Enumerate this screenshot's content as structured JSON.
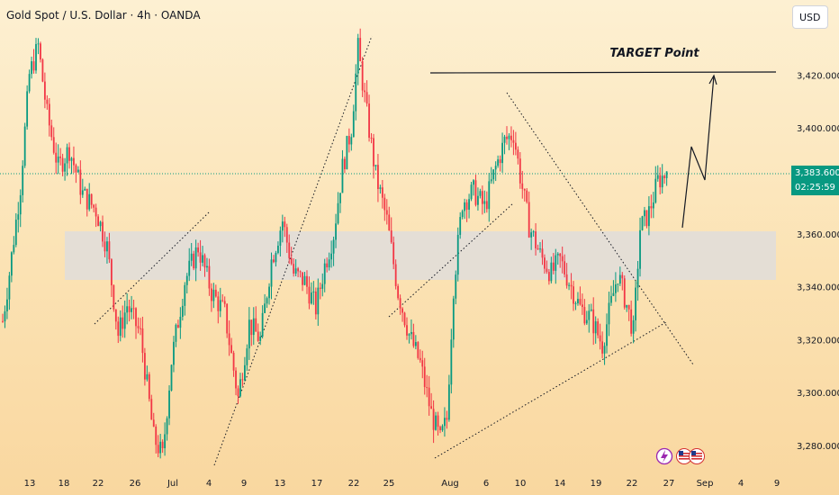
{
  "header": {
    "title": "Gold Spot / U.S. Dollar · 4h · OANDA",
    "currency": "USD"
  },
  "price_tag": {
    "price": "3,383.600",
    "countdown": "02:25:59"
  },
  "annotations": {
    "target_label": "TARGET Point"
  },
  "colors": {
    "up": "#089981",
    "down": "#f23645",
    "current_price_line": "#089981",
    "zone": "#dcdce0",
    "pattern_lines": "#131722"
  },
  "icons": [
    "lightning-icon",
    "us-flag-icon",
    "us-flag-icon"
  ],
  "chart_data": {
    "type": "candlestick",
    "title": "Gold Spot / U.S. Dollar · 4h · OANDA",
    "x_tick_labels": [
      "13",
      "18",
      "22",
      "26",
      "Jul",
      "4",
      "9",
      "13",
      "17",
      "22",
      "25",
      "Aug",
      "6",
      "10",
      "14",
      "19",
      "22",
      "27",
      "Sep",
      "4",
      "9"
    ],
    "y_tick_labels": [
      "3,280.000",
      "3,300.000",
      "3,320.000",
      "3,340.000",
      "3,360.000",
      "3,380.000",
      "3,400.000",
      "3,420.000"
    ],
    "y_range": [
      3271,
      3442
    ],
    "current_price": 3383.6,
    "support_zone": [
      3344,
      3362
    ],
    "target_level": 3422,
    "close_path": [
      {
        "t": 0,
        "p": 3327
      },
      {
        "t": 3,
        "p": 3345
      },
      {
        "t": 8,
        "p": 3378
      },
      {
        "t": 12,
        "p": 3420
      },
      {
        "t": 16,
        "p": 3431
      },
      {
        "t": 20,
        "p": 3405
      },
      {
        "t": 25,
        "p": 3385
      },
      {
        "t": 30,
        "p": 3392
      },
      {
        "t": 36,
        "p": 3375
      },
      {
        "t": 42,
        "p": 3369
      },
      {
        "t": 47,
        "p": 3355
      },
      {
        "t": 52,
        "p": 3322
      },
      {
        "t": 56,
        "p": 3333
      },
      {
        "t": 62,
        "p": 3322
      },
      {
        "t": 68,
        "p": 3283
      },
      {
        "t": 72,
        "p": 3276
      },
      {
        "t": 76,
        "p": 3312
      },
      {
        "t": 82,
        "p": 3342
      },
      {
        "t": 88,
        "p": 3355
      },
      {
        "t": 94,
        "p": 3338
      },
      {
        "t": 100,
        "p": 3330
      },
      {
        "t": 106,
        "p": 3298
      },
      {
        "t": 111,
        "p": 3326
      },
      {
        "t": 116,
        "p": 3320
      },
      {
        "t": 121,
        "p": 3350
      },
      {
        "t": 126,
        "p": 3365
      },
      {
        "t": 131,
        "p": 3345
      },
      {
        "t": 136,
        "p": 3342
      },
      {
        "t": 141,
        "p": 3332
      },
      {
        "t": 145,
        "p": 3348
      },
      {
        "t": 149,
        "p": 3360
      },
      {
        "t": 153,
        "p": 3385
      },
      {
        "t": 157,
        "p": 3400
      },
      {
        "t": 160,
        "p": 3430
      },
      {
        "t": 164,
        "p": 3405
      },
      {
        "t": 168,
        "p": 3382
      },
      {
        "t": 173,
        "p": 3365
      },
      {
        "t": 178,
        "p": 3338
      },
      {
        "t": 183,
        "p": 3322
      },
      {
        "t": 188,
        "p": 3311
      },
      {
        "t": 193,
        "p": 3292
      },
      {
        "t": 197,
        "p": 3282
      },
      {
        "t": 200,
        "p": 3290
      },
      {
        "t": 203,
        "p": 3340
      },
      {
        "t": 207,
        "p": 3372
      },
      {
        "t": 212,
        "p": 3376
      },
      {
        "t": 217,
        "p": 3370
      },
      {
        "t": 222,
        "p": 3385
      },
      {
        "t": 226,
        "p": 3395
      },
      {
        "t": 230,
        "p": 3398
      },
      {
        "t": 233,
        "p": 3382
      },
      {
        "t": 237,
        "p": 3363
      },
      {
        "t": 242,
        "p": 3352
      },
      {
        "t": 247,
        "p": 3345
      },
      {
        "t": 251,
        "p": 3350
      },
      {
        "t": 256,
        "p": 3340
      },
      {
        "t": 260,
        "p": 3332
      },
      {
        "t": 265,
        "p": 3328
      },
      {
        "t": 270,
        "p": 3318
      },
      {
        "t": 273,
        "p": 3330
      },
      {
        "t": 277,
        "p": 3345
      },
      {
        "t": 281,
        "p": 3333
      },
      {
        "t": 284,
        "p": 3323
      },
      {
        "t": 287,
        "p": 3362
      },
      {
        "t": 291,
        "p": 3368
      },
      {
        "t": 295,
        "p": 3380
      },
      {
        "t": 299,
        "p": 3383
      }
    ]
  }
}
